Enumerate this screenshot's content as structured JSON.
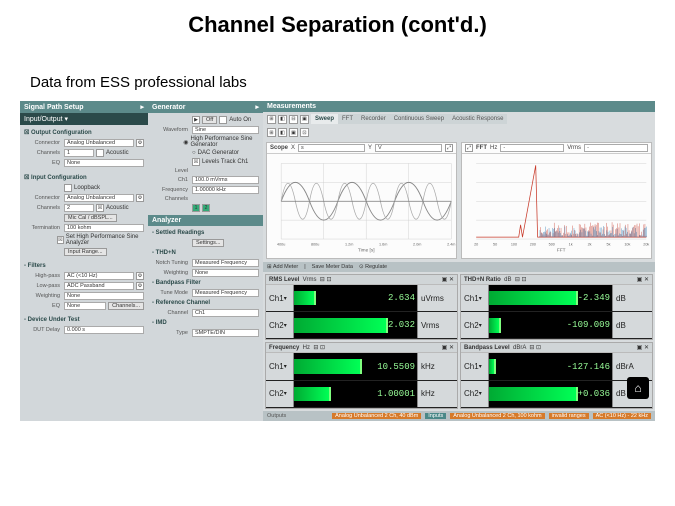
{
  "slide": {
    "title": "Channel Separation (cont'd.)",
    "subtitle": "Data from ESS professional labs"
  },
  "left_panel": {
    "header": "Signal Path Setup",
    "dark": "Input/Output",
    "output_cfg": {
      "title": "Output Configuration",
      "connector_lbl": "Connector",
      "connector": "Analog Unbalanced",
      "channels_lbl": "Channels",
      "channels": "1",
      "acoustic": "Acoustic",
      "eq_lbl": "EQ",
      "eq": "None"
    },
    "input_cfg": {
      "title": "Input Configuration",
      "loopback": "Loopback",
      "connector_lbl": "Connector",
      "connector": "Analog Unbalanced",
      "channels_lbl": "Channels",
      "channels": "2",
      "acoustic": "Acoustic",
      "mic_cal": "Mic Cal / dBSPL...",
      "termination_lbl": "Termination",
      "termination": "100 kohm",
      "set_btn": "Set High Performance Sine Analyzer",
      "input_range": "Input Range..."
    },
    "filters": {
      "title": "Filters",
      "hp_lbl": "High-pass",
      "hp": "AC (<10 Hz)",
      "lp_lbl": "Low-pass",
      "lp": "ADC Passband",
      "w_lbl": "Weighting",
      "w": "None",
      "eq_lbl": "EQ",
      "eq": "None",
      "channels_btn": "Channels..."
    },
    "dut": {
      "title": "Device Under Test",
      "delay_lbl": "DUT Delay",
      "delay": "0.000 s"
    }
  },
  "mid_panel": {
    "header": "Generator",
    "on_row": {
      "off": "Off",
      "auto": "Auto On"
    },
    "waveform_lbl": "Waveform",
    "waveform": "Sine",
    "hp": "High Performance Sine Generator",
    "dac": "DAC Generator",
    "track": "Levels Track Ch1",
    "level_lbl": "Level",
    "ch1_lbl": "Ch1",
    "ch1": "100.0 mVrms",
    "freq_lbl": "Frequency",
    "freq": "1.00000 kHz",
    "channels_lbl": "Channels",
    "analyzer_hdr": "Analyzer",
    "settled": "Settled Readings",
    "settings": "Settings...",
    "thdn": "THD+N",
    "notch_lbl": "Notch Tuning",
    "notch": "Measured Frequency",
    "weight_lbl": "Weighting",
    "weight": "None",
    "bp": "Bandpass Filter",
    "tune_lbl": "Tune Mode",
    "tune": "Measured Frequency",
    "refch": "Reference Channel",
    "refch_lbl": "Channel",
    "refch_val": "Ch1",
    "imd": "IMD",
    "imd_lbl": "Type",
    "imd_val": "SMPTE/DIN"
  },
  "right_panel": {
    "header": "Measurements",
    "tabs": [
      "Sweep",
      "FFT",
      "Recorder",
      "Continuous Sweep",
      "Acoustic Response"
    ],
    "scope_hdr": {
      "scope": "Scope",
      "x": "X",
      "y": "Y",
      "fft": "FFT",
      "hz": "Hz",
      "vrms": "Vrms"
    },
    "scope_x": [
      "400u",
      "800u",
      "1.2m",
      "1.6m",
      "2.0m",
      "2.4m"
    ],
    "scope_xlabel": "Time [s]",
    "fft_x": [
      "20",
      "50",
      "100",
      "200",
      "500",
      "1k",
      "2k",
      "5k",
      "10k",
      "20k"
    ],
    "fft_xlabel": "FFT",
    "chart_colors": {
      "ch1": "#2d7bb5",
      "ch2": "#c83a2a",
      "grid": "#d0d0d0",
      "axis": "#888"
    },
    "meters_bar": [
      "Add Meter",
      "Save Meter Data",
      "Regulate"
    ],
    "meters": [
      {
        "title": "RMS Level",
        "unit_hdr": "Vrms",
        "rows": [
          {
            "ch": "Ch1",
            "val": "2.634",
            "unit": "uVrms",
            "bar": 0.18
          },
          {
            "ch": "Ch2",
            "val": "2.032",
            "unit": "Vrms",
            "bar": 0.92
          }
        ]
      },
      {
        "title": "THD+N Ratio",
        "unit_hdr": "dB",
        "rows": [
          {
            "ch": "Ch1",
            "val": "-2.349",
            "unit": "dB",
            "bar": 0.95
          },
          {
            "ch": "Ch2",
            "val": "-109.009",
            "unit": "dB",
            "bar": 0.1
          }
        ]
      },
      {
        "title": "Frequency",
        "unit_hdr": "Hz",
        "rows": [
          {
            "ch": "Ch1",
            "val": "10.5509",
            "unit": "kHz",
            "bar": 0.55
          },
          {
            "ch": "Ch2",
            "val": "1.00001",
            "unit": "kHz",
            "bar": 0.3
          }
        ]
      },
      {
        "title": "Bandpass Level",
        "unit_hdr": "dBrA",
        "rows": [
          {
            "ch": "Ch1",
            "val": "-127.146",
            "unit": "dBrA",
            "bar": 0.06
          },
          {
            "ch": "Ch2",
            "val": "+0.036",
            "unit": "dB",
            "bar": 0.98
          }
        ]
      }
    ],
    "status": [
      "Analog Unbalanced 2 Ch, 40 dBm",
      "Inputs",
      "Analog Unbalanced 2 Ch, 100 kohm",
      "invalid ranges",
      "AC (<10 Hz) - 22 kHz"
    ]
  }
}
